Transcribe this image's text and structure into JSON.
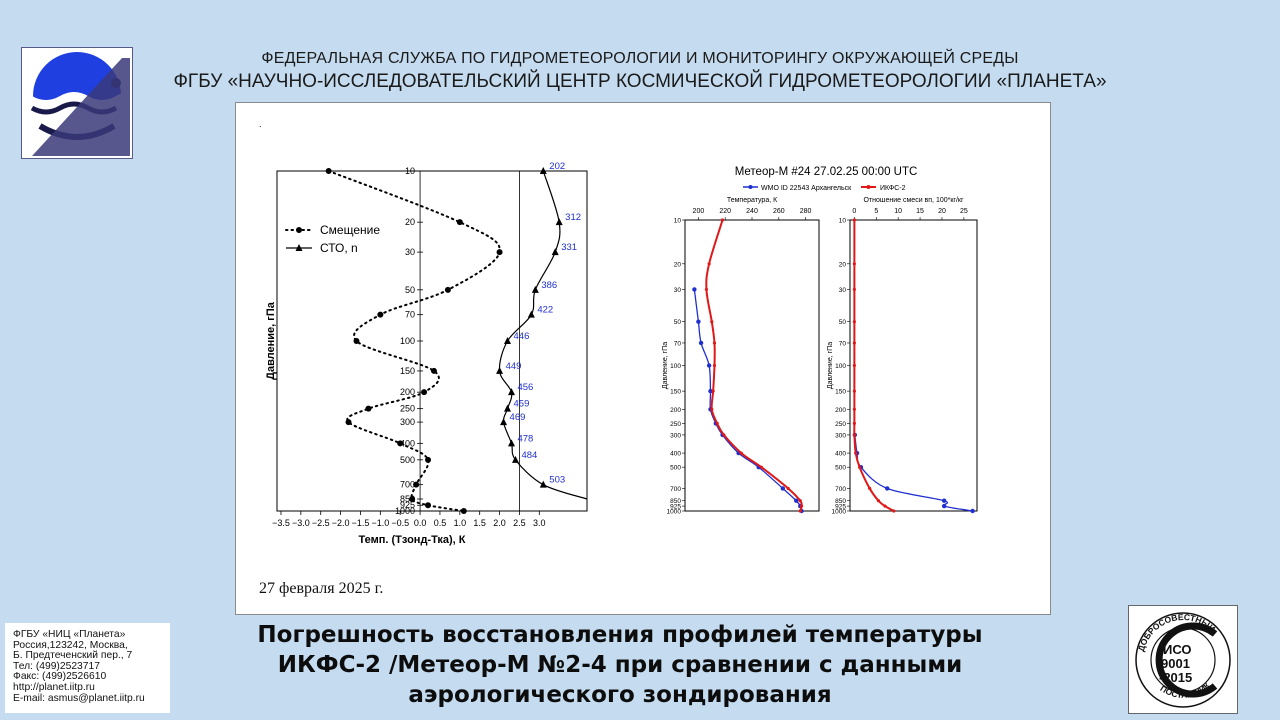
{
  "header": {
    "line1": "ФЕДЕРАЛЬНАЯ СЛУЖБА ПО ГИДРОМЕТЕОРОЛОГИИ И МОНИТОРИНГУ ОКРУЖАЮЩЕЙ СРЕДЫ",
    "line2": "ФГБУ «НАУЧНО-ИССЛЕДОВАТЕЛЬСКИЙ ЦЕНТР КОСМИЧЕСКОЙ ГИДРОМЕТЕОРОЛОГИИ «ПЛАНЕТА»"
  },
  "logo_icon": "planeta-logo",
  "date": "27 февраля 2025 г.",
  "contact": [
    "ФГБУ «НИЦ «Планета»",
    "Россия,123242, Москва,",
    "Б. Предтеченский пер., 7",
    "Тел:   (499)2523717",
    "Факс: (499)2526610",
    "http://planet.iitp.ru",
    "E-mail: asmus@planet.iitp.ru"
  ],
  "caption": [
    "Погрешность восстановления профилей температуры",
    "ИКФС-2 /Метеор-М №2-4 при сравнении с данными",
    "аэрологического зондирования"
  ],
  "iso_badge": {
    "top_text": "ДОБРОСОВЕСТНЫЙ",
    "line1": "ИСО",
    "line2": "9001",
    "line3": "-2015",
    "bottom_text": "ПОСТАВЩИК"
  },
  "chart_data": [
    {
      "type": "line",
      "ylabel": "Давление, гПа",
      "xlabel": "Темп. (Тзонд-Тка), К",
      "x_ticks": [
        "−3.5",
        "−3.0",
        "−2.5",
        "−2.0",
        "−1.5",
        "−1.0",
        "−0.5",
        "0.0",
        "0.5",
        "1.0",
        "1.5",
        "2.0",
        "2.5",
        "3.0"
      ],
      "y_ticks": [
        10,
        20,
        30,
        50,
        70,
        100,
        150,
        200,
        250,
        300,
        400,
        500,
        700,
        850,
        925,
        1000
      ],
      "y_scale": "log",
      "xlim": [
        -3.6,
        4.2
      ],
      "ylim": [
        10,
        1000
      ],
      "legend_position": "upper-left",
      "series": [
        {
          "name": "Смещение",
          "style": "dotted",
          "marker": "circle",
          "points": [
            {
              "p": 10,
              "x": -2.3
            },
            {
              "p": 20,
              "x": 1.0
            },
            {
              "p": 30,
              "x": 2.0
            },
            {
              "p": 50,
              "x": 0.7
            },
            {
              "p": 70,
              "x": -1.0
            },
            {
              "p": 100,
              "x": -1.6
            },
            {
              "p": 150,
              "x": 0.35
            },
            {
              "p": 200,
              "x": 0.1
            },
            {
              "p": 250,
              "x": -1.3
            },
            {
              "p": 300,
              "x": -1.8
            },
            {
              "p": 400,
              "x": -0.5
            },
            {
              "p": 500,
              "x": 0.2
            },
            {
              "p": 700,
              "x": -0.1
            },
            {
              "p": 850,
              "x": -0.2
            },
            {
              "p": 925,
              "x": 0.2
            },
            {
              "p": 1000,
              "x": 1.1
            }
          ]
        },
        {
          "name": "СТО, n",
          "style": "solid",
          "marker": "triangle",
          "points": [
            {
              "p": 10,
              "x": 3.1,
              "n": "202"
            },
            {
              "p": 20,
              "x": 3.5,
              "n": "312"
            },
            {
              "p": 30,
              "x": 3.4,
              "n": "331"
            },
            {
              "p": 50,
              "x": 2.9,
              "n": "386"
            },
            {
              "p": 70,
              "x": 2.8,
              "n": "422"
            },
            {
              "p": 100,
              "x": 2.2,
              "n": "446"
            },
            {
              "p": 150,
              "x": 2.0,
              "n": "449"
            },
            {
              "p": 200,
              "x": 2.3,
              "n": "456"
            },
            {
              "p": 250,
              "x": 2.2,
              "n": "459"
            },
            {
              "p": 300,
              "x": 2.1,
              "n": "469"
            },
            {
              "p": 400,
              "x": 2.3,
              "n": "478"
            },
            {
              "p": 500,
              "x": 2.4,
              "n": "484"
            },
            {
              "p": 700,
              "x": 3.1,
              "n": "503"
            },
            {
              "p": 850,
              "x": 4.2,
              "n": ""
            }
          ]
        }
      ],
      "vertical_lines": [
        0.0,
        2.5
      ]
    },
    {
      "type": "line",
      "title": "Метеор-М #24 27.02.25 00:00 UTC",
      "legend": [
        "WMO ID 22543 Архангельск",
        "ИКФС-2"
      ],
      "legend_colors": [
        "#1f2fd0",
        "#e01818"
      ],
      "panels": [
        {
          "xlabel": "Температура, К",
          "x_ticks": [
            200,
            220,
            240,
            260,
            280
          ],
          "xlim": [
            190,
            290
          ],
          "ylabel": "Давление, гПа",
          "y_ticks": [
            10,
            20,
            30,
            50,
            70,
            100,
            150,
            200,
            250,
            300,
            400,
            500,
            700,
            850,
            925,
            1000
          ],
          "series": [
            {
              "name": "WMO ID 22543 Архангельск",
              "points": [
                {
                  "p": 30,
                  "x": 197
                },
                {
                  "p": 50,
                  "x": 200
                },
                {
                  "p": 70,
                  "x": 202
                },
                {
                  "p": 100,
                  "x": 208
                },
                {
                  "p": 150,
                  "x": 209
                },
                {
                  "p": 200,
                  "x": 209
                },
                {
                  "p": 250,
                  "x": 213
                },
                {
                  "p": 300,
                  "x": 218
                },
                {
                  "p": 400,
                  "x": 230
                },
                {
                  "p": 500,
                  "x": 245
                },
                {
                  "p": 700,
                  "x": 263
                },
                {
                  "p": 850,
                  "x": 273
                },
                {
                  "p": 925,
                  "x": 276
                },
                {
                  "p": 1000,
                  "x": 277
                }
              ]
            },
            {
              "name": "ИКФС-2",
              "points": [
                {
                  "p": 10,
                  "x": 218
                },
                {
                  "p": 20,
                  "x": 208
                },
                {
                  "p": 30,
                  "x": 206
                },
                {
                  "p": 50,
                  "x": 210
                },
                {
                  "p": 70,
                  "x": 212
                },
                {
                  "p": 100,
                  "x": 212
                },
                {
                  "p": 150,
                  "x": 211
                },
                {
                  "p": 200,
                  "x": 210
                },
                {
                  "p": 250,
                  "x": 214
                },
                {
                  "p": 300,
                  "x": 219
                },
                {
                  "p": 400,
                  "x": 232
                },
                {
                  "p": 500,
                  "x": 247
                },
                {
                  "p": 700,
                  "x": 267
                },
                {
                  "p": 850,
                  "x": 276
                },
                {
                  "p": 925,
                  "x": 277
                },
                {
                  "p": 1000,
                  "x": 276
                }
              ]
            }
          ]
        },
        {
          "xlabel": "Отношение смеси вп, 100*кг/кг",
          "x_ticks": [
            0,
            5,
            10,
            15,
            20,
            25
          ],
          "xlim": [
            -1,
            28
          ],
          "ylabel": "Давление, гПа",
          "y_ticks": [
            10,
            20,
            30,
            50,
            70,
            100,
            150,
            200,
            250,
            300,
            400,
            500,
            700,
            850,
            925,
            1000
          ],
          "series": [
            {
              "name": "WMO ID 22543 Архангельск",
              "points": [
                {
                  "p": 300,
                  "x": 0.1
                },
                {
                  "p": 400,
                  "x": 0.6
                },
                {
                  "p": 500,
                  "x": 1.5
                },
                {
                  "p": 700,
                  "x": 7.5
                },
                {
                  "p": 850,
                  "x": 20.5
                },
                {
                  "p": 925,
                  "x": 20.5
                },
                {
                  "p": 1000,
                  "x": 27
                }
              ]
            },
            {
              "name": "ИКФС-2",
              "points": [
                {
                  "p": 10,
                  "x": 0
                },
                {
                  "p": 20,
                  "x": 0
                },
                {
                  "p": 30,
                  "x": 0
                },
                {
                  "p": 50,
                  "x": 0
                },
                {
                  "p": 70,
                  "x": 0
                },
                {
                  "p": 100,
                  "x": 0
                },
                {
                  "p": 150,
                  "x": 0
                },
                {
                  "p": 200,
                  "x": 0
                },
                {
                  "p": 250,
                  "x": 0
                },
                {
                  "p": 300,
                  "x": 0
                },
                {
                  "p": 400,
                  "x": 0.3
                },
                {
                  "p": 500,
                  "x": 1.2
                },
                {
                  "p": 700,
                  "x": 3.5
                },
                {
                  "p": 850,
                  "x": 5.5
                },
                {
                  "p": 925,
                  "x": 7
                },
                {
                  "p": 1000,
                  "x": 9
                }
              ]
            }
          ]
        }
      ]
    }
  ]
}
